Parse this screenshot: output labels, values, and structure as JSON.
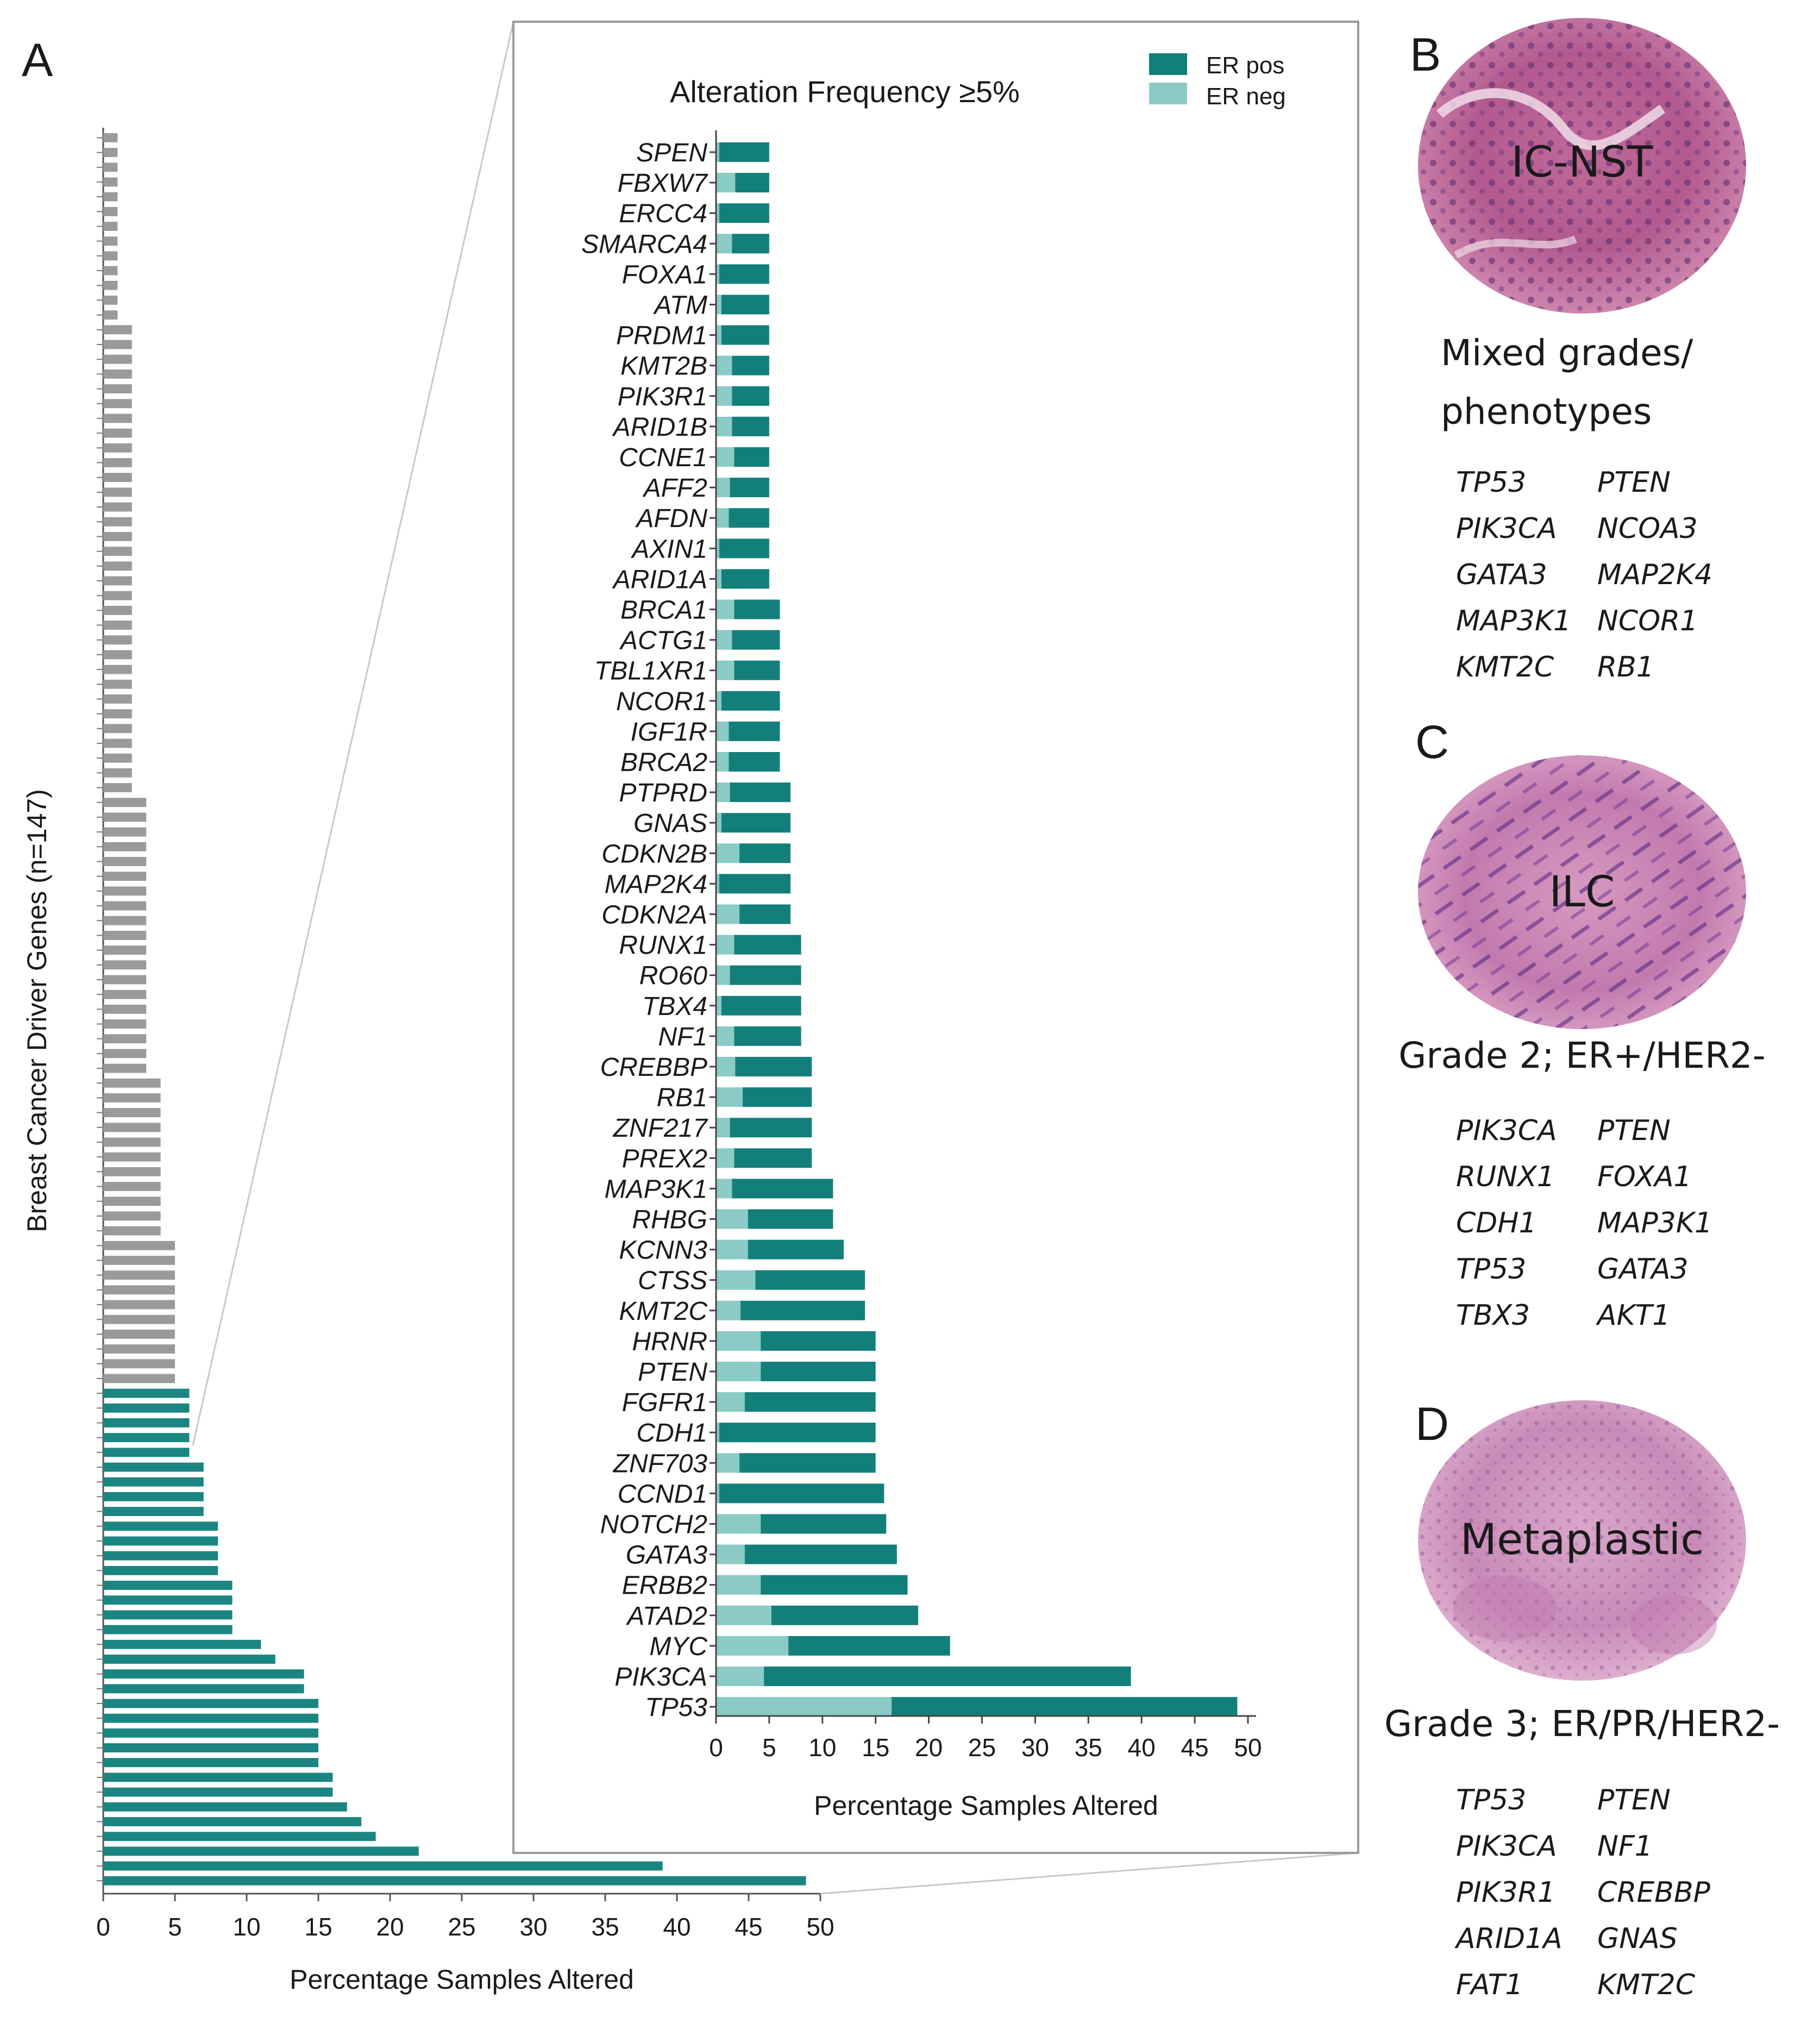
{
  "panels": {
    "A": {
      "letter": "A",
      "overview": {
        "ylabel": "Breast Cancer Driver Genes (n=147)",
        "xlabel": "Percentage Samples Altered",
        "xticks": [
          "0",
          "5",
          "10",
          "15",
          "20",
          "25",
          "30",
          "35",
          "40",
          "45",
          "50"
        ]
      }
    },
    "B": {
      "letter": "B",
      "image_label": "IC-NST",
      "caption_lines": [
        "Mixed grades/",
        "phenotypes"
      ],
      "genes": [
        "TP53",
        "PTEN",
        "PIK3CA",
        "NCOA3",
        "GATA3",
        "MAP2K4",
        "MAP3K1",
        "NCOR1",
        "KMT2C",
        "RB1"
      ]
    },
    "C": {
      "letter": "C",
      "image_label": "ILC",
      "caption_lines": [
        "Grade 2; ER+/HER2-"
      ],
      "genes": [
        "PIK3CA",
        "PTEN",
        "RUNX1",
        "FOXA1",
        "CDH1",
        "MAP3K1",
        "TP53",
        "GATA3",
        "TBX3",
        "AKT1"
      ]
    },
    "D": {
      "letter": "D",
      "image_label": "Metaplastic",
      "caption_lines": [
        "Grade 3; ER/PR/HER2-"
      ],
      "genes": [
        "TP53",
        "PTEN",
        "PIK3CA",
        "NF1",
        "PIK3R1",
        "CREBBP",
        "ARID1A",
        "GNAS",
        "FAT1",
        "KMT2C"
      ]
    }
  },
  "colors": {
    "er_pos": "#137f7b",
    "er_neg": "#8acbc5",
    "gray_bar": "#9a9a9a",
    "teal_bar": "#1b8581"
  },
  "chart_data": [
    {
      "type": "bar",
      "orientation": "horizontal",
      "stacked": true,
      "title": "Alteration Frequency ≥5%",
      "xlabel": "Percentage Samples Altered",
      "xlim": [
        0,
        50
      ],
      "xticks": [
        "0",
        "5",
        "10",
        "15",
        "20",
        "25",
        "30",
        "35",
        "40",
        "45",
        "50"
      ],
      "legend_position": "top-right",
      "categories": [
        "SPEN",
        "FBXW7",
        "ERCC4",
        "SMARCA4",
        "FOXA1",
        "ATM",
        "PRDM1",
        "KMT2B",
        "PIK3R1",
        "ARID1B",
        "CCNE1",
        "AFF2",
        "AFDN",
        "AXIN1",
        "ARID1A",
        "BRCA1",
        "ACTG1",
        "TBL1XR1",
        "NCOR1",
        "IGF1R",
        "BRCA2",
        "PTPRD",
        "GNAS",
        "CDKN2B",
        "MAP2K4",
        "CDKN2A",
        "RUNX1",
        "RO60",
        "TBX4",
        "NF1",
        "CREBBP",
        "RB1",
        "ZNF217",
        "PREX2",
        "MAP3K1",
        "RHBG",
        "KCNN3",
        "CTSS",
        "KMT2C",
        "HRNR",
        "PTEN",
        "FGFR1",
        "CDH1",
        "ZNF703",
        "CCND1",
        "NOTCH2",
        "GATA3",
        "ERBB2",
        "ATAD2",
        "MYC",
        "PIK3CA",
        "TP53"
      ],
      "series": [
        {
          "name": "ER neg",
          "values": [
            0.3,
            1.8,
            0.3,
            1.5,
            0.3,
            0.5,
            0.5,
            1.5,
            1.5,
            1.5,
            1.7,
            1.3,
            1.2,
            0.3,
            0.5,
            1.7,
            1.5,
            1.7,
            0.5,
            1.2,
            1.2,
            1.3,
            0.5,
            2.2,
            0.3,
            2.2,
            1.7,
            1.3,
            0.5,
            1.7,
            1.8,
            2.5,
            1.3,
            1.7,
            1.5,
            3.0,
            3.0,
            3.7,
            2.3,
            4.2,
            4.2,
            2.7,
            0.3,
            2.2,
            0.3,
            4.2,
            2.7,
            4.2,
            5.2,
            6.8,
            4.5,
            16.5
          ]
        },
        {
          "name": "ER pos",
          "values": [
            4.7,
            3.2,
            4.7,
            3.5,
            4.7,
            4.5,
            4.5,
            3.5,
            3.5,
            3.5,
            3.3,
            3.7,
            3.8,
            4.7,
            4.5,
            4.3,
            4.5,
            4.3,
            5.5,
            4.8,
            4.8,
            5.7,
            6.5,
            4.8,
            6.7,
            4.8,
            6.3,
            6.7,
            7.5,
            6.3,
            7.2,
            6.5,
            7.7,
            7.3,
            9.5,
            8.0,
            9.0,
            10.3,
            11.7,
            10.8,
            10.8,
            12.3,
            14.7,
            12.8,
            15.5,
            11.8,
            14.3,
            13.8,
            13.8,
            15.2,
            34.5,
            32.5
          ]
        }
      ]
    },
    {
      "type": "bar",
      "orientation": "horizontal",
      "title": "",
      "ylabel": "Breast Cancer Driver Genes (n=147)",
      "xlabel": "Percentage Samples Altered",
      "xlim": [
        0,
        50
      ],
      "note_groups": [
        {
          "value": 1,
          "count": 13
        },
        {
          "value": 2,
          "count": 32
        },
        {
          "value": 3,
          "count": 19
        },
        {
          "value": 4,
          "count": 11
        },
        {
          "value": 5,
          "count": 10
        },
        {
          "value": 6,
          "count": 5
        },
        {
          "value": 7,
          "count": 4
        },
        {
          "value": 8,
          "count": 4
        },
        {
          "value": 9,
          "count": 4
        },
        {
          "value": 11,
          "count": 1
        },
        {
          "value": 12,
          "count": 1
        },
        {
          "value": 14,
          "count": 2
        },
        {
          "value": 15,
          "count": 5
        },
        {
          "value": 16,
          "count": 2
        },
        {
          "value": 17,
          "count": 1
        },
        {
          "value": 18,
          "count": 1
        },
        {
          "value": 19,
          "count": 1
        },
        {
          "value": 22,
          "count": 1
        },
        {
          "value": 39,
          "count": 1
        },
        {
          "value": 49,
          "count": 1
        }
      ],
      "highlight_threshold": 5
    }
  ]
}
